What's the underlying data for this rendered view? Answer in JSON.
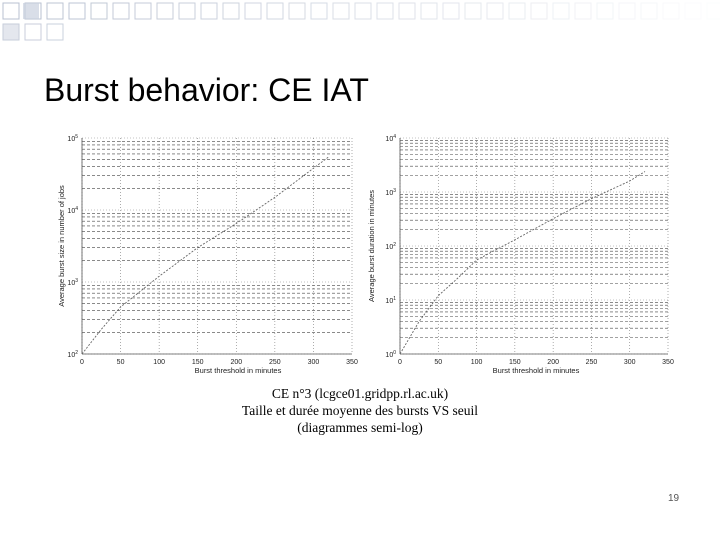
{
  "slide": {
    "title": "Burst behavior: CE IAT",
    "caption": [
      "CE n°3 (lcgce01.gridpp.rl.ac.uk)",
      "Taille et durée moyenne des bursts VS seuil",
      "(diagrammes semi-log)"
    ],
    "page_number": "19"
  },
  "chart_data": [
    {
      "type": "line",
      "xlabel": "Burst threshold in minutes",
      "ylabel": "Average burst size in number of jobs",
      "yscale": "log",
      "xlim": [
        0,
        350
      ],
      "ylim": [
        100,
        100000
      ],
      "xticks": [
        0,
        50,
        100,
        150,
        200,
        250,
        300,
        350
      ],
      "xtick_labels": [
        "0",
        "50",
        "100",
        "150",
        "200",
        "250",
        "300",
        "350"
      ],
      "yticks": [
        100,
        1000,
        10000,
        100000
      ],
      "ytick_labels": [
        "10^2",
        "10^3",
        "10^4",
        "10^5"
      ],
      "grid": true,
      "series": [
        {
          "color": "#666666",
          "x": [
            0,
            25,
            50,
            100,
            150,
            200,
            250,
            300,
            320
          ],
          "y": [
            100,
            220,
            450,
            1200,
            3000,
            6500,
            15000,
            38000,
            55000
          ]
        }
      ]
    },
    {
      "type": "line",
      "xlabel": "Burst threshold in minutes",
      "ylabel": "Average burst duration in minutes",
      "yscale": "log",
      "xlim": [
        0,
        350
      ],
      "ylim": [
        1,
        10000
      ],
      "xticks": [
        0,
        50,
        100,
        150,
        200,
        250,
        300,
        350
      ],
      "xtick_labels": [
        "0",
        "50",
        "100",
        "150",
        "200",
        "250",
        "300",
        "350"
      ],
      "yticks": [
        1,
        10,
        100,
        1000,
        10000
      ],
      "ytick_labels": [
        "10^0",
        "10^1",
        "10^2",
        "10^3",
        "10^4"
      ],
      "grid": true,
      "series": [
        {
          "color": "#666666",
          "x": [
            0,
            25,
            50,
            75,
            100,
            150,
            200,
            250,
            300,
            320
          ],
          "y": [
            1,
            4,
            12,
            25,
            55,
            130,
            320,
            750,
            1600,
            2400
          ]
        }
      ]
    }
  ]
}
